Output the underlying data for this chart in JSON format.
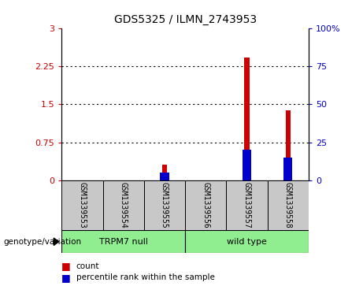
{
  "title": "GDS5325 / ILMN_2743953",
  "samples": [
    "GSM1339553",
    "GSM1339554",
    "GSM1339555",
    "GSM1339556",
    "GSM1339557",
    "GSM1339558"
  ],
  "count_values": [
    0.0,
    0.0,
    0.3,
    0.0,
    2.42,
    1.38
  ],
  "percentile_values": [
    0.0,
    0.0,
    5.0,
    0.0,
    20.0,
    15.0
  ],
  "left_ylim": [
    0,
    3.0
  ],
  "right_ylim": [
    0,
    100
  ],
  "left_yticks": [
    0,
    0.75,
    1.5,
    2.25,
    3.0
  ],
  "right_yticks": [
    0,
    25,
    50,
    75,
    100
  ],
  "left_yticklabels": [
    "0",
    "0.75",
    "1.5",
    "2.25",
    "3"
  ],
  "right_yticklabels": [
    "0",
    "25",
    "50",
    "75",
    "100%"
  ],
  "groups": [
    {
      "label": "TRPM7 null",
      "start": 0,
      "end": 3,
      "color": "#90EE90"
    },
    {
      "label": "wild type",
      "start": 3,
      "end": 6,
      "color": "#90EE90"
    }
  ],
  "group_label": "genotype/variation",
  "bar_color_red": "#CC0000",
  "bar_color_blue": "#0000CC",
  "bar_width": 0.12,
  "bg_color": "#C8C8C8",
  "legend_items": [
    {
      "color": "#CC0000",
      "label": "count"
    },
    {
      "color": "#0000CC",
      "label": "percentile rank within the sample"
    }
  ]
}
